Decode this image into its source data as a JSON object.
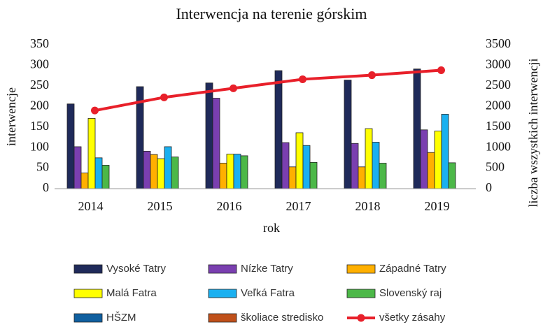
{
  "chart_data": {
    "type": "bar",
    "title": "Interwencja na terenie górskim",
    "x_label": "rok",
    "y_label": "interwencje",
    "y2_label": "liczba wszystkich interwencji",
    "categories": [
      "2014",
      "2015",
      "2016",
      "2017",
      "2018",
      "2019"
    ],
    "series": [
      {
        "name": "Vysoké Tatry",
        "color": "#1f2a5a",
        "values": [
          206,
          248,
          257,
          287,
          264,
          291
        ]
      },
      {
        "name": "Nízke Tatry",
        "color": "#7a3fb0",
        "values": [
          102,
          91,
          220,
          112,
          110,
          143
        ]
      },
      {
        "name": "Západné Tatry",
        "color": "#ffb000",
        "values": [
          38,
          83,
          62,
          53,
          53,
          88
        ]
      },
      {
        "name": "Malá Fatra",
        "color": "#ffff00",
        "values": [
          171,
          73,
          84,
          136,
          146,
          140
        ]
      },
      {
        "name": "Veľká Fatra",
        "color": "#1ab0f0",
        "values": [
          75,
          102,
          84,
          105,
          113,
          181
        ]
      },
      {
        "name": "Slovenský raj",
        "color": "#4cb848",
        "values": [
          57,
          77,
          80,
          64,
          62,
          63
        ]
      },
      {
        "name": "HŠZM",
        "color": "#1060a0",
        "values": [
          0,
          0,
          0,
          0,
          0,
          0
        ]
      },
      {
        "name": "školiace stredisko",
        "color": "#c0501a",
        "values": [
          0,
          0,
          0,
          0,
          0,
          0
        ]
      },
      {
        "name": "všetky zásahy",
        "color": "#e8202a",
        "type": "line",
        "axis": "y2",
        "values": [
          1900,
          2220,
          2440,
          2660,
          2760,
          2880
        ]
      }
    ],
    "ylim": [
      0,
      350
    ],
    "yticks": [
      0,
      50,
      100,
      150,
      200,
      250,
      300,
      350
    ],
    "y2lim": [
      0,
      3500
    ],
    "y2ticks": [
      0,
      500,
      1000,
      1500,
      2000,
      2500,
      3000,
      3500
    ],
    "grid": false
  }
}
